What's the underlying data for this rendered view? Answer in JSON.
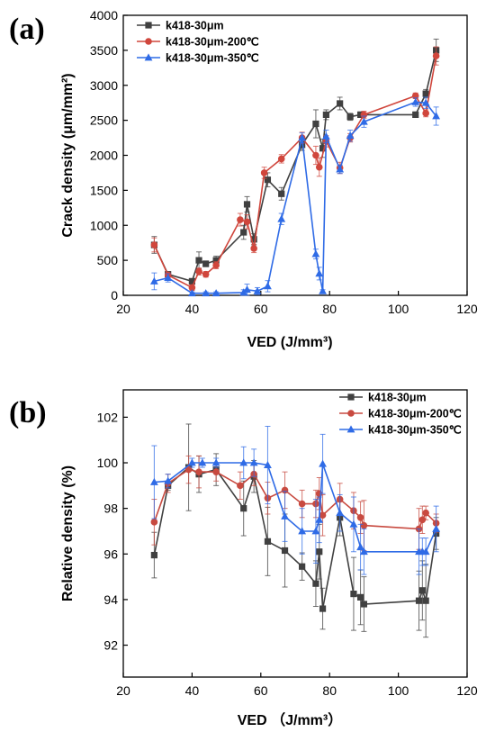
{
  "figure": {
    "panel_labels": [
      "(a)",
      "(b)"
    ]
  },
  "chart_data": [
    {
      "type": "line",
      "panel": "(a)",
      "title": "",
      "xlabel": "VED (J/mm³)",
      "ylabel": "Crack density (μm/mm²)",
      "xlim": [
        20,
        120
      ],
      "ylim": [
        0,
        4000
      ],
      "xticks": [
        20,
        40,
        60,
        80,
        100,
        120
      ],
      "yticks": [
        0,
        500,
        1000,
        1500,
        2000,
        2500,
        3000,
        3500,
        4000
      ],
      "legend_position": "top-left",
      "grid": false,
      "error_bars": true,
      "series": [
        {
          "name": "k418-30μm",
          "color": "#404040",
          "marker": "square",
          "x": [
            29,
            33,
            40,
            42,
            44,
            47,
            55,
            56,
            58,
            62,
            66,
            72,
            76,
            78,
            79,
            83,
            86,
            89,
            105,
            108,
            111
          ],
          "y": [
            720,
            300,
            200,
            500,
            450,
            500,
            900,
            1300,
            800,
            1650,
            1450,
            2150,
            2450,
            2100,
            2580,
            2740,
            2550,
            2580,
            2580,
            2880,
            3500
          ],
          "err": [
            120,
            30,
            40,
            120,
            40,
            60,
            100,
            110,
            80,
            100,
            90,
            80,
            200,
            130,
            70,
            90,
            50,
            40,
            40,
            60,
            160
          ]
        },
        {
          "name": "k418-30μm-200℃",
          "color": "#d0463c",
          "marker": "circle",
          "x": [
            29,
            33,
            40,
            42,
            44,
            47,
            54,
            56,
            58,
            61,
            66,
            72,
            76,
            77,
            79,
            83,
            86,
            90,
            105,
            108,
            111
          ],
          "y": [
            720,
            290,
            110,
            340,
            300,
            430,
            1080,
            1050,
            670,
            1750,
            1950,
            2250,
            2000,
            1830,
            2200,
            1820,
            2250,
            2580,
            2850,
            2600,
            3420
          ],
          "err": [
            100,
            30,
            40,
            50,
            40,
            50,
            90,
            100,
            60,
            80,
            60,
            80,
            130,
            130,
            80,
            80,
            60,
            50,
            40,
            50,
            130
          ]
        },
        {
          "name": "k418-30μm-350℃",
          "color": "#2f6be6",
          "marker": "triangle",
          "x": [
            29,
            33,
            40,
            44,
            47,
            55,
            56,
            59,
            62,
            66,
            72,
            76,
            77,
            78,
            79,
            83,
            86,
            90,
            105,
            108,
            111
          ],
          "y": [
            200,
            250,
            30,
            30,
            30,
            40,
            80,
            60,
            130,
            1090,
            2250,
            590,
            310,
            60,
            2270,
            1800,
            2280,
            2480,
            2760,
            2750,
            2560
          ],
          "err": [
            120,
            60,
            20,
            20,
            20,
            40,
            80,
            50,
            80,
            80,
            70,
            70,
            90,
            20,
            90,
            60,
            80,
            80,
            60,
            80,
            130
          ]
        }
      ]
    },
    {
      "type": "line",
      "panel": "(b)",
      "title": "",
      "xlabel": "VED （J/mm³）",
      "ylabel": "Relative density (%)",
      "xlim": [
        20,
        120
      ],
      "ylim": [
        90.6,
        103.2
      ],
      "xticks": [
        20,
        40,
        60,
        80,
        100,
        120
      ],
      "yticks": [
        92,
        94,
        96,
        98,
        100,
        102
      ],
      "legend_position": "top-right",
      "grid": false,
      "error_bars": true,
      "series": [
        {
          "name": "k418-30μm",
          "color": "#404040",
          "marker": "square",
          "x": [
            29,
            33,
            39,
            42,
            47,
            55,
            58,
            62,
            67,
            72,
            76,
            77,
            78,
            83,
            87,
            89,
            90,
            106,
            107,
            108,
            111
          ],
          "y": [
            95.95,
            99.0,
            99.8,
            99.5,
            99.7,
            98.0,
            99.4,
            96.55,
            96.15,
            95.45,
            94.7,
            96.1,
            93.6,
            97.6,
            94.25,
            94.1,
            93.8,
            93.95,
            94.4,
            93.95,
            96.9
          ],
          "err": [
            1.0,
            0.2,
            1.9,
            0.8,
            0.7,
            1.2,
            0.7,
            1.5,
            1.6,
            0.6,
            1.0,
            1.2,
            0.9,
            0.8,
            1.6,
            1.2,
            1.2,
            1.3,
            1.3,
            1.6,
            0.7
          ]
        },
        {
          "name": "k418-30μm-200℃",
          "color": "#c84a40",
          "marker": "circle",
          "x": [
            29,
            33,
            39,
            42,
            47,
            54,
            58,
            62,
            67,
            72,
            76,
            77,
            78,
            83,
            87,
            89,
            90,
            106,
            107,
            108,
            111
          ],
          "y": [
            97.4,
            99.1,
            99.7,
            99.6,
            99.6,
            99.0,
            99.5,
            98.45,
            98.8,
            98.2,
            98.2,
            98.65,
            97.7,
            98.4,
            97.9,
            97.6,
            97.25,
            97.1,
            97.5,
            97.8,
            97.35
          ],
          "err": [
            1.0,
            0.4,
            0.6,
            0.7,
            0.4,
            0.6,
            0.5,
            0.7,
            0.8,
            0.6,
            0.6,
            0.7,
            0.9,
            0.7,
            0.8,
            0.7,
            1.1,
            0.9,
            0.6,
            0.3,
            0.4
          ]
        },
        {
          "name": "k418-30μm-350℃",
          "color": "#2f6be6",
          "marker": "triangle",
          "x": [
            29,
            33,
            40,
            43,
            47,
            55,
            58,
            62,
            67,
            72,
            76,
            77,
            78,
            83,
            87,
            89,
            90,
            106,
            107,
            108,
            111
          ],
          "y": [
            99.15,
            99.2,
            100.0,
            100.0,
            100.0,
            100.0,
            100.0,
            99.9,
            97.65,
            97.0,
            97.0,
            97.5,
            99.95,
            97.8,
            97.3,
            96.3,
            96.1,
            96.1,
            96.1,
            96.1,
            97.1
          ],
          "err": [
            1.6,
            0.3,
            0.2,
            0.2,
            0.2,
            0.7,
            0.6,
            1.7,
            1.1,
            1.0,
            1.4,
            1.0,
            1.3,
            0.8,
            1.2,
            1.0,
            1.0,
            1.0,
            0.6,
            0.6,
            1.0
          ]
        }
      ]
    }
  ]
}
